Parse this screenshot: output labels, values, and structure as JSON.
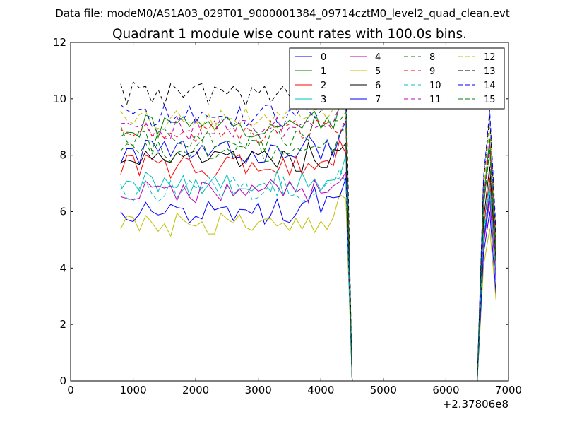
{
  "suptitle": "Data file: modeM0/AS1A03_029T01_9000001384_09714cztM0_level2_quad_clean.evt",
  "chart_data": {
    "type": "line",
    "title": "Quadrant 1 module wise count rates with 100.0s bins.",
    "xlabel": "",
    "ylabel": "",
    "x_offset_label": "+2.37806e8",
    "xlim": [
      0,
      7000
    ],
    "ylim": [
      0,
      12
    ],
    "x_ticks": [
      0,
      1000,
      2000,
      3000,
      4000,
      5000,
      6000,
      7000
    ],
    "x_tick_labels": [
      "0",
      "1000",
      "2000",
      "3000",
      "4000",
      "5000",
      "6000",
      "7000"
    ],
    "y_ticks": [
      0,
      2,
      4,
      6,
      8,
      10,
      12
    ],
    "y_tick_labels": [
      "0",
      "2",
      "4",
      "6",
      "8",
      "10",
      "12"
    ],
    "grid": false,
    "legend_position": "upper-right",
    "legend_columns": 4,
    "series": [
      {
        "name": "0",
        "color": "#0000ff",
        "style": "solid",
        "base": 8.1,
        "spike": 6.6
      },
      {
        "name": "1",
        "color": "#008000",
        "style": "solid",
        "base": 9.0,
        "spike": 8.6
      },
      {
        "name": "2",
        "color": "#ff0000",
        "style": "solid",
        "base": 7.6,
        "spike": 7.2
      },
      {
        "name": "3",
        "color": "#00bfbf",
        "style": "solid",
        "base": 7.0,
        "spike": 6.8
      },
      {
        "name": "4",
        "color": "#bf00bf",
        "style": "solid",
        "base": 6.7,
        "spike": 6.4
      },
      {
        "name": "5",
        "color": "#bfbf00",
        "style": "solid",
        "base": 5.5,
        "spike": 5.4
      },
      {
        "name": "6",
        "color": "#000000",
        "style": "solid",
        "base": 7.8,
        "spike": 7.6
      },
      {
        "name": "7",
        "color": "#0000ff",
        "style": "solid",
        "base": 6.0,
        "spike": 6.0
      },
      {
        "name": "8",
        "color": "#008000",
        "style": "dashed",
        "base": 8.1,
        "spike": 8.2
      },
      {
        "name": "9",
        "color": "#ff0000",
        "style": "dashed",
        "base": 8.8,
        "spike": 8.4
      },
      {
        "name": "10",
        "color": "#00bfbf",
        "style": "dashed",
        "base": 6.8,
        "spike": 7.0
      },
      {
        "name": "11",
        "color": "#bf00bf",
        "style": "dashed",
        "base": 8.9,
        "spike": 8.4
      },
      {
        "name": "12",
        "color": "#bfbf00",
        "style": "dashed",
        "base": 9.3,
        "spike": 9.0
      },
      {
        "name": "13",
        "color": "#000000",
        "style": "dashed",
        "base": 10.2,
        "spike": 9.4
      },
      {
        "name": "14",
        "color": "#0000ff",
        "style": "dashed",
        "base": 9.4,
        "spike": 9.6
      },
      {
        "name": "15",
        "color": "#008000",
        "style": "dashed",
        "base": 8.6,
        "spike": 8.2
      }
    ],
    "segments": {
      "first_start": 800,
      "first_end": 4400,
      "bin": 100,
      "drop_x": 4500,
      "zero_end": 6500,
      "second": [
        6500,
        6600,
        6700,
        6800
      ]
    }
  }
}
